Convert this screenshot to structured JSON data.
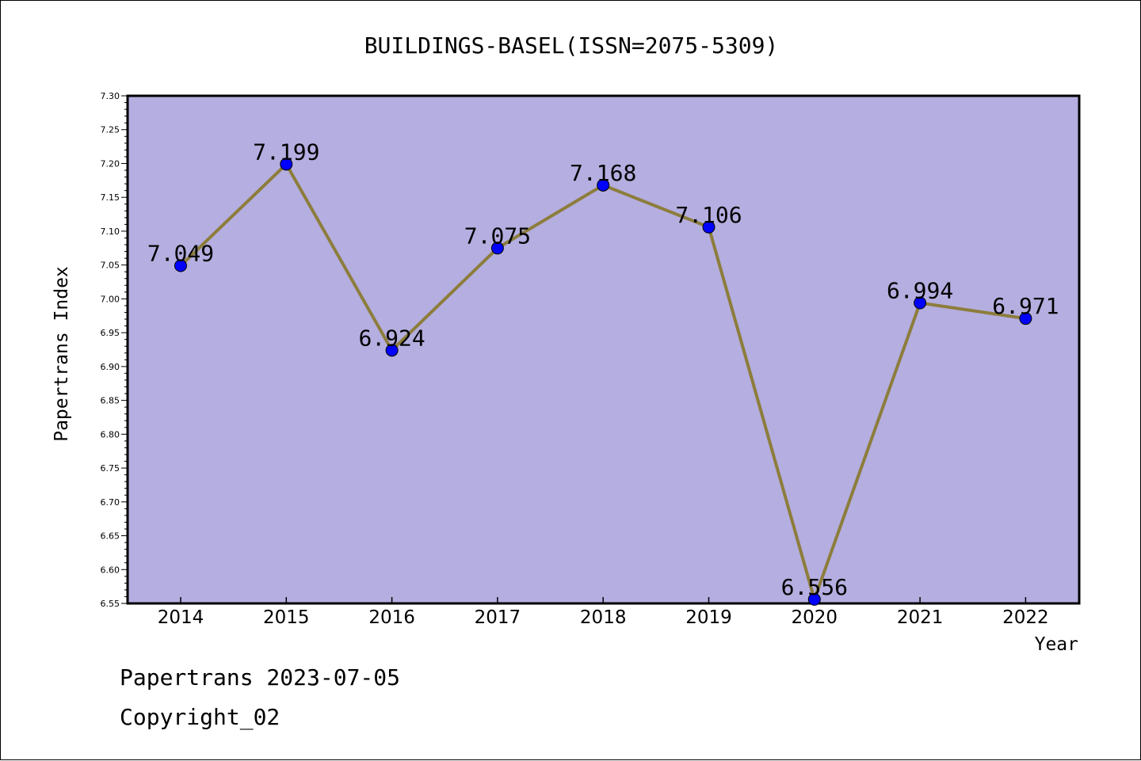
{
  "chart_data": {
    "type": "line",
    "title": "BUILDINGS-BASEL(ISSN=2075-5309)",
    "xlabel": "Year",
    "ylabel": "Papertrans Index",
    "categories": [
      "2014",
      "2015",
      "2016",
      "2017",
      "2018",
      "2019",
      "2020",
      "2021",
      "2022"
    ],
    "series": [
      {
        "values": [
          7.049,
          7.199,
          6.924,
          7.075,
          7.168,
          7.106,
          6.556,
          6.994,
          6.971
        ]
      }
    ],
    "data_labels": [
      "7.049",
      "7.199",
      "6.924",
      "7.075",
      "7.168",
      "7.106",
      "6.556",
      "6.994",
      "6.971"
    ],
    "ylim": [
      6.55,
      7.3
    ],
    "yticks": [
      "6.55",
      "6.60",
      "6.65",
      "6.70",
      "6.75",
      "6.80",
      "6.85",
      "6.90",
      "6.95",
      "7.00",
      "7.05",
      "7.10",
      "7.15",
      "7.20",
      "7.25",
      "7.30"
    ],
    "grid": false,
    "legend": "none",
    "colors": {
      "plot_background": "#b5aee0",
      "line": "#8c7d3c",
      "marker": "#0000ff"
    }
  },
  "footer": {
    "line1": "Papertrans 2023-07-05",
    "line2": "Copyright_02"
  }
}
